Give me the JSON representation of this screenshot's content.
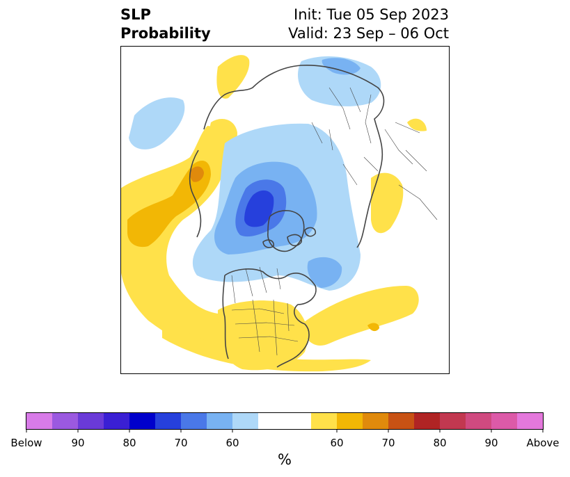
{
  "title": {
    "line1": "SLP",
    "line2": "Probability",
    "init": "Init: Tue 05 Sep 2023",
    "valid": "Valid: 23 Sep – 06 Oct"
  },
  "map": {
    "projection": "north-polar-stereographic",
    "frame_color": "#000000",
    "coast_color": "#444444"
  },
  "colorbar": {
    "unit_label": "%",
    "tick_labels": [
      "Below",
      "90",
      "80",
      "70",
      "60",
      "60",
      "70",
      "80",
      "90",
      "Above"
    ],
    "below_colors": [
      "#d87be8",
      "#9b59e0",
      "#6a3ad8",
      "#3a1fd4",
      "#0000cc",
      "#2640dc",
      "#4a78e8",
      "#78b2f2",
      "#aed8f8"
    ],
    "neutral_color": "#ffffff",
    "above_colors": [
      "#ffe14a",
      "#f2b705",
      "#e08a0c",
      "#c85214",
      "#b02424",
      "#c23850",
      "#d04a80",
      "#dc5aa8",
      "#e478dc"
    ]
  }
}
